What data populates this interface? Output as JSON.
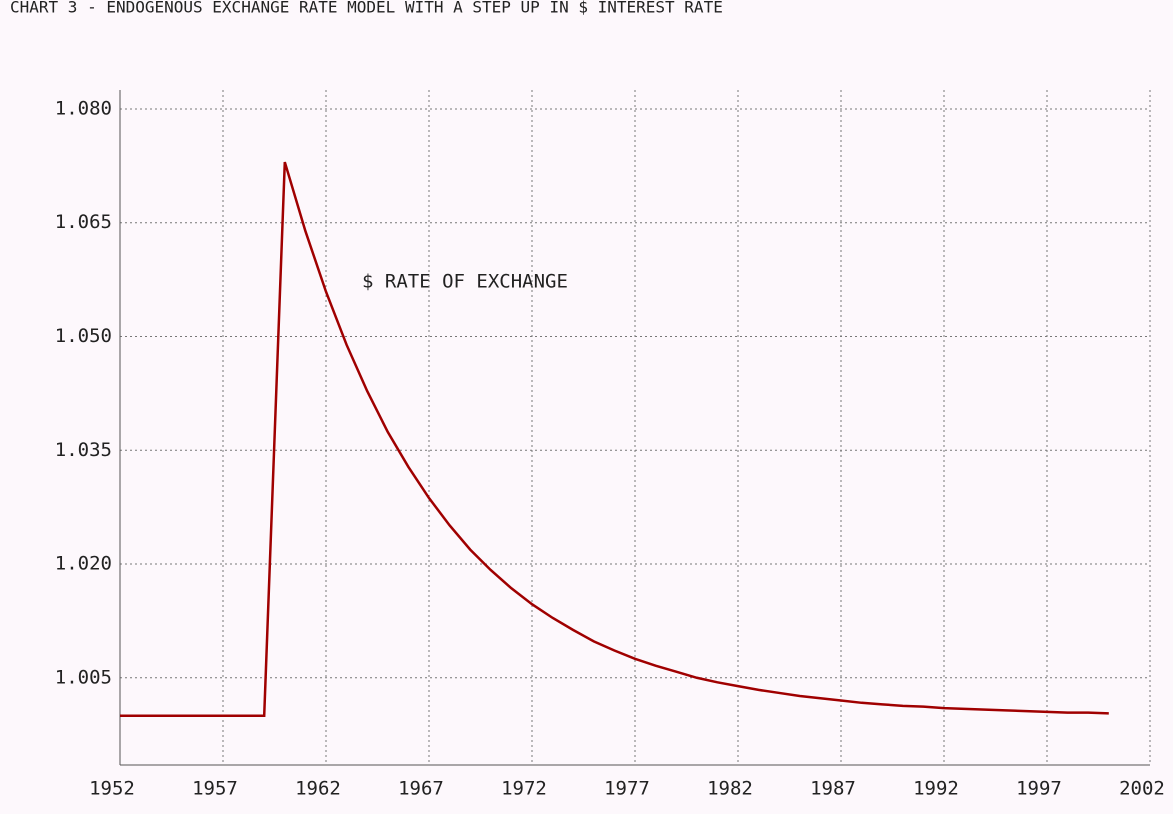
{
  "chart_data": {
    "type": "line",
    "title": "CHART 3 - ENDOGENOUS EXCHANGE RATE MODEL WITH A STEP UP IN $ INTEREST RATE",
    "annotation": "$ RATE OF EXCHANGE",
    "x": [
      1952,
      1953,
      1954,
      1955,
      1956,
      1957,
      1958,
      1959,
      1960,
      1961,
      1962,
      1963,
      1964,
      1965,
      1966,
      1967,
      1968,
      1969,
      1970,
      1971,
      1972,
      1973,
      1974,
      1975,
      1976,
      1977,
      1978,
      1979,
      1980,
      1981,
      1982,
      1983,
      1984,
      1985,
      1986,
      1987,
      1988,
      1989,
      1990,
      1991,
      1992,
      1993,
      1994,
      1995,
      1996,
      1997,
      1998,
      1999,
      2000
    ],
    "series": [
      {
        "name": "$ RATE OF EXCHANGE",
        "color": "#a00000",
        "values": [
          1.0,
          1.0,
          1.0,
          1.0,
          1.0,
          1.0,
          1.0,
          1.0,
          1.073,
          1.0639,
          1.0559,
          1.0489,
          1.0428,
          1.0374,
          1.0328,
          1.0287,
          1.0251,
          1.0219,
          1.0192,
          1.0168,
          1.0147,
          1.0129,
          1.0113,
          1.0098,
          1.0086,
          1.0075,
          1.0066,
          1.0058,
          1.005,
          1.0044,
          1.0039,
          1.0034,
          1.003,
          1.0026,
          1.0023,
          1.002,
          1.0017,
          1.0015,
          1.0013,
          1.0012,
          1.001,
          1.0009,
          1.0008,
          1.0007,
          1.0006,
          1.0005,
          1.0004,
          1.0004,
          1.0003
        ]
      }
    ],
    "xlim": [
      1952,
      2002
    ],
    "xticks": [
      1952,
      1957,
      1962,
      1967,
      1972,
      1977,
      1982,
      1987,
      1992,
      1997,
      2002
    ],
    "ylim": [
      0.9935,
      1.0825
    ],
    "yticks": [
      {
        "value": 1.005,
        "label": "1.005"
      },
      {
        "value": 1.02,
        "label": "1.020"
      },
      {
        "value": 1.035,
        "label": "1.035"
      },
      {
        "value": 1.05,
        "label": "1.050"
      },
      {
        "value": 1.065,
        "label": "1.065"
      },
      {
        "value": 1.08,
        "label": "1.080"
      }
    ],
    "grid": true
  }
}
